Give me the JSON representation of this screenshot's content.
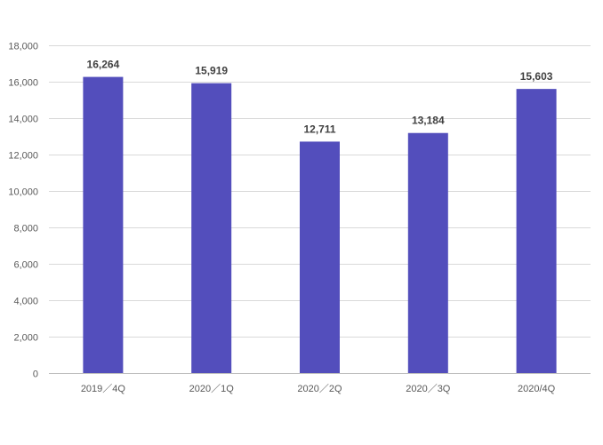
{
  "chart_data": {
    "type": "bar",
    "title": "",
    "xlabel": "",
    "ylabel": "",
    "categories": [
      "2019／4Q",
      "2020／1Q",
      "2020／2Q",
      "2020／3Q",
      "2020/4Q"
    ],
    "values": [
      16264,
      15919,
      12711,
      13184,
      15603
    ],
    "data_labels": [
      "16,264",
      "15,919",
      "12,711",
      "13,184",
      "15,603"
    ],
    "ylim": [
      0,
      18000
    ],
    "yticks": [
      0,
      2000,
      4000,
      6000,
      8000,
      10000,
      12000,
      14000,
      16000,
      18000
    ],
    "ytick_labels": [
      "0",
      "2,000",
      "4,000",
      "6,000",
      "8,000",
      "10,000",
      "12,000",
      "14,000",
      "16,000",
      "18,000"
    ],
    "grid": true,
    "legend": "none",
    "colors": {
      "bar": "#534ebc",
      "grid": "#d9d9d9",
      "axis": "#bfbfbf"
    }
  }
}
